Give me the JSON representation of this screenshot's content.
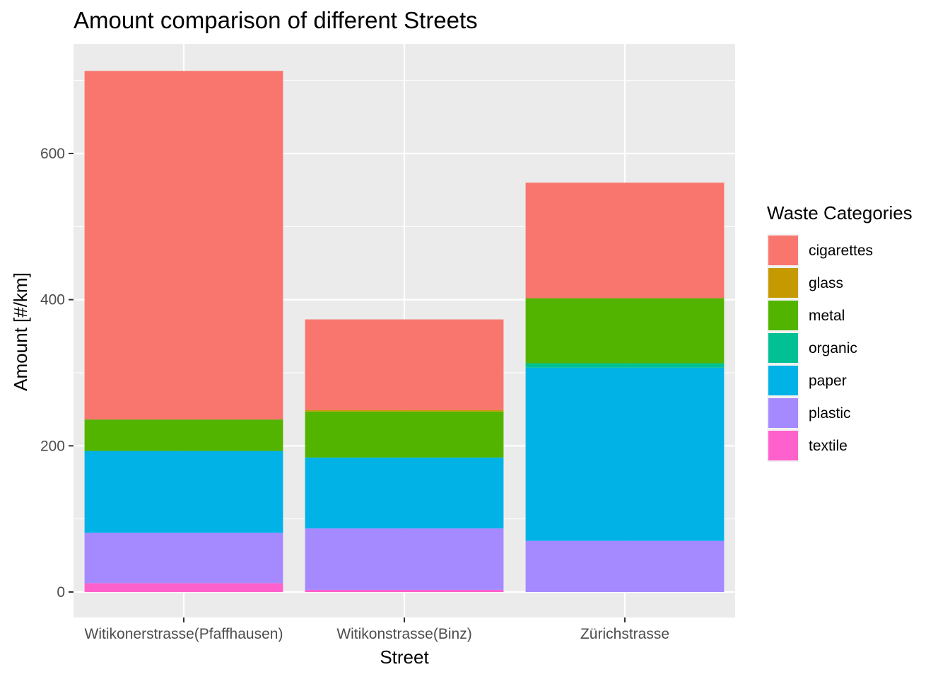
{
  "chart_data": {
    "type": "bar",
    "stacked": true,
    "title": "Amount comparison of different Streets",
    "xlabel": "Street",
    "ylabel": "Amount [#/km]",
    "categories": [
      "Witikonerstrasse(Pfaffhausen)",
      "Witikonstrasse(Binz)",
      "Zürichstrasse"
    ],
    "ylim": [
      -35,
      750
    ],
    "yticks": [
      0,
      200,
      400,
      600
    ],
    "grid": true,
    "legend": {
      "title": "Waste Categories",
      "position": "right"
    },
    "series": [
      {
        "name": "textile",
        "color": "#FF61CC",
        "values": [
          12,
          3,
          0
        ]
      },
      {
        "name": "plastic",
        "color": "#A58AFF",
        "values": [
          69,
          84,
          70
        ]
      },
      {
        "name": "paper",
        "color": "#00B2E6",
        "values": [
          112,
          97,
          237
        ]
      },
      {
        "name": "organic",
        "color": "#00C094",
        "values": [
          0,
          0,
          6
        ]
      },
      {
        "name": "metal",
        "color": "#53B400",
        "values": [
          43,
          63,
          89
        ]
      },
      {
        "name": "glass",
        "color": "#C49A00",
        "values": [
          0,
          2,
          0
        ]
      },
      {
        "name": "cigarettes",
        "color": "#F8766D",
        "values": [
          477,
          124,
          158
        ]
      }
    ],
    "legend_order": [
      "cigarettes",
      "glass",
      "metal",
      "organic",
      "paper",
      "plastic",
      "textile"
    ]
  }
}
